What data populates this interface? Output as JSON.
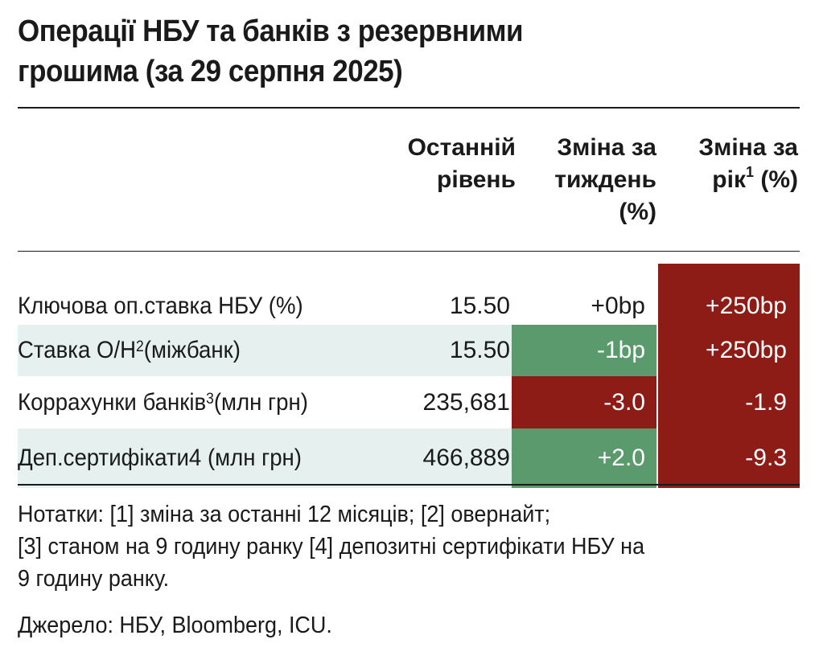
{
  "title": {
    "line1": "Операції НБУ та банків з резервними",
    "line2": "грошима (за 29 серпня 2025)"
  },
  "headers": {
    "last": [
      "Останній",
      "рівень"
    ],
    "week": [
      "Зміна за",
      "тиждень",
      "(%)"
    ],
    "year_pre": [
      "Зміна за",
      "рік"
    ],
    "year_sup": "1",
    "year_post": " (%)"
  },
  "rows": [
    {
      "label": "Ключова оп.ставка НБУ (%)",
      "label_sup": "",
      "label_post": "",
      "last": "15.50",
      "week": "+0bp",
      "year": "+250bp"
    },
    {
      "label": "Ставка О/Н",
      "label_sup": "2",
      "label_post": " (міжбанк)",
      "last": "15.50",
      "week": "-1bp",
      "year": "+250bp"
    },
    {
      "label": "Корраxунки банків",
      "label_sup": "3",
      "label_post": " (млн грн)",
      "last": "235,681",
      "week": "-3.0",
      "year": "-1.9"
    },
    {
      "label": "Деп.сертифікати4 (млн грн)",
      "label_sup": "",
      "label_post": "",
      "last": "466,889",
      "week": "+2.0",
      "year": "-9.3"
    }
  ],
  "notes": [
    "Нотатки: [1] зміна за останні 12 місяців; [2] овернайт;",
    "[3] станом на 9 годину ранку [4] депозитні сертифікати НБУ на",
    "9 годину ранку."
  ],
  "source": "Джерело: НБУ, Bloomberg, ICU.",
  "colors": {
    "positive": "#5a9a6d",
    "negative": "#8c1c15",
    "row_shade": "#e6f1ef"
  }
}
